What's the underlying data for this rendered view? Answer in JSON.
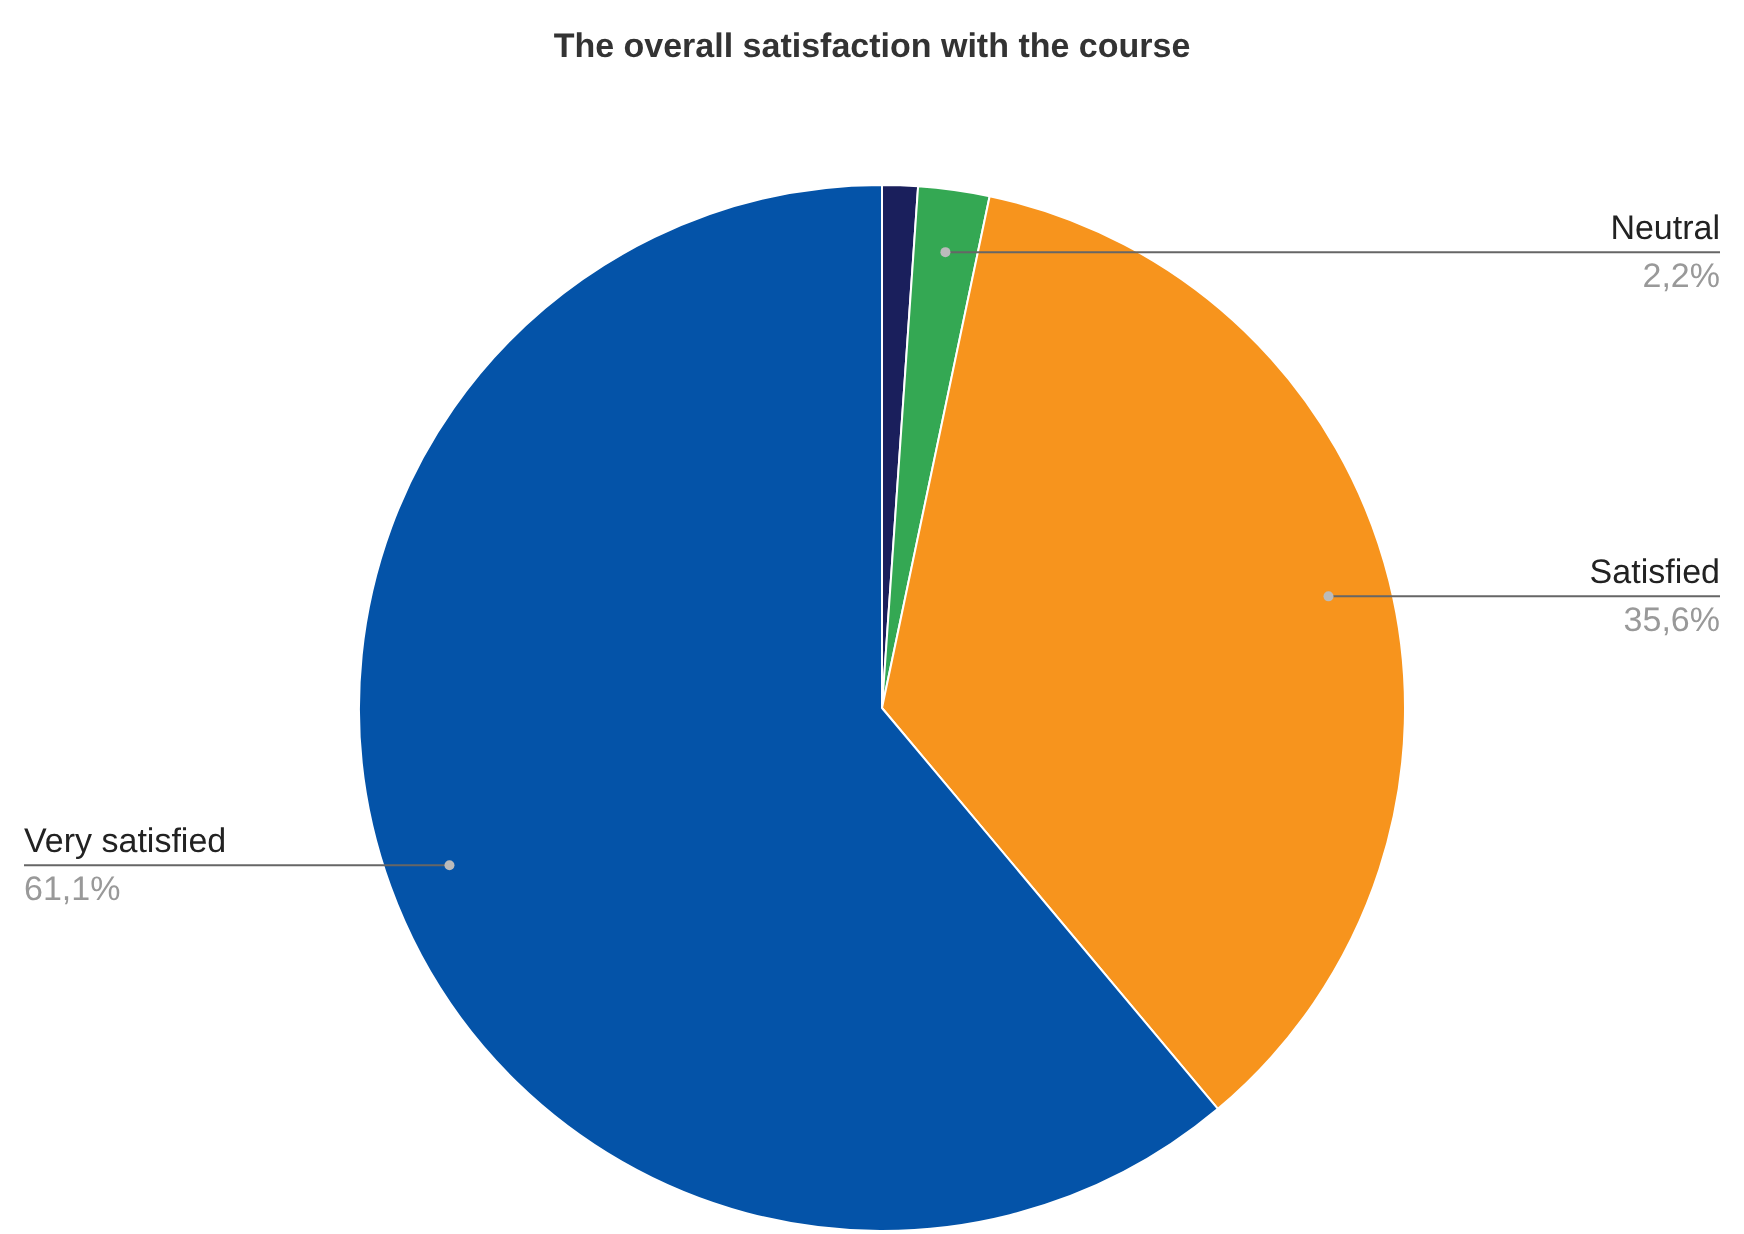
{
  "chart_data": {
    "type": "pie",
    "title": "The overall satisfaction with the course",
    "categories": [
      null,
      "Neutral",
      "Satisfied",
      "Very satisfied"
    ],
    "values": [
      1.1,
      2.2,
      35.6,
      61.1
    ],
    "value_labels": [
      null,
      "2,2%",
      "35,6%",
      "61,1%"
    ],
    "colors": [
      "#1a1f5c",
      "#34a853",
      "#f7941d",
      "#0453a8"
    ],
    "legend": false
  }
}
